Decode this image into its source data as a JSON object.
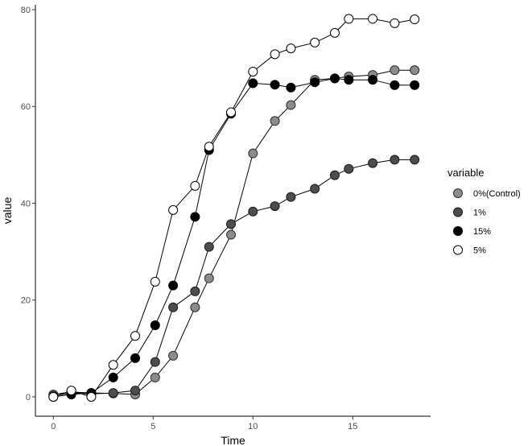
{
  "chart_data": {
    "type": "line",
    "xlabel": "Time",
    "ylabel": "value",
    "xlim": [
      -0.9,
      18.9
    ],
    "ylim": [
      -4,
      81
    ],
    "x_ticks": [
      0,
      5,
      10,
      15
    ],
    "y_ticks": [
      0,
      20,
      40,
      60,
      80
    ],
    "grid": false,
    "legend": {
      "title": "variable",
      "position": "right"
    },
    "series": [
      {
        "name": "0%(Control)",
        "fill": "#8c8c8c",
        "stroke": "#2b2b2b",
        "x": [
          0,
          0.9,
          1.9,
          3.0,
          4.1,
          5.1,
          6.0,
          7.1,
          7.8,
          8.9,
          10.0,
          11.1,
          11.9,
          13.1,
          14.1,
          14.8,
          16.0,
          17.1,
          18.1
        ],
        "y": [
          0.5,
          1.0,
          0.8,
          0.7,
          0.5,
          4.0,
          8.5,
          18.5,
          24.5,
          33.5,
          50.3,
          57.0,
          60.3,
          65.5,
          65.8,
          66.2,
          66.5,
          67.5,
          67.5
        ]
      },
      {
        "name": "1%",
        "fill": "#4d4d4d",
        "stroke": "#1a1a1a",
        "x": [
          0,
          0.9,
          1.9,
          3.0,
          4.1,
          5.1,
          6.0,
          7.1,
          7.8,
          8.9,
          10.0,
          11.1,
          11.9,
          13.1,
          14.1,
          14.8,
          16.0,
          17.1,
          18.1
        ],
        "y": [
          0.2,
          0.8,
          0.6,
          0.8,
          1.3,
          7.2,
          18.5,
          21.8,
          31.0,
          35.7,
          38.3,
          39.4,
          41.3,
          43.0,
          45.8,
          47.1,
          48.3,
          49.0,
          49.0
        ]
      },
      {
        "name": "15%",
        "fill": "#000000",
        "stroke": "#000000",
        "x": [
          0,
          0.9,
          1.9,
          3.0,
          4.1,
          5.1,
          6.0,
          7.1,
          7.8,
          8.9,
          10.0,
          11.1,
          11.9,
          13.1,
          14.1,
          14.8,
          16.0,
          17.1,
          18.1
        ],
        "y": [
          0.0,
          0.5,
          0.8,
          4.0,
          8.0,
          14.8,
          23.0,
          37.2,
          51.0,
          58.5,
          64.8,
          64.5,
          63.9,
          65.0,
          65.8,
          65.5,
          65.5,
          64.4,
          64.4
        ]
      },
      {
        "name": "5%",
        "fill": "#ffffff",
        "stroke": "#000000",
        "x": [
          0,
          0.9,
          1.9,
          3.0,
          4.1,
          5.1,
          6.0,
          7.1,
          7.8,
          8.9,
          10.0,
          11.1,
          11.9,
          13.1,
          14.1,
          14.8,
          16.0,
          17.1,
          18.1
        ],
        "y": [
          0.0,
          1.3,
          0.0,
          6.6,
          12.6,
          23.8,
          38.6,
          43.6,
          51.7,
          58.8,
          67.2,
          70.8,
          72.0,
          73.2,
          75.2,
          78.1,
          78.1,
          77.2,
          78.0
        ]
      }
    ]
  }
}
